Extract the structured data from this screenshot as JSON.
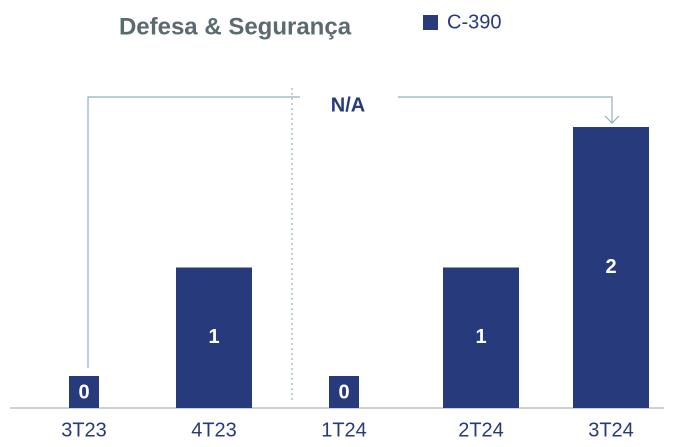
{
  "chart_data": {
    "type": "bar",
    "title": "Defesa & Segurança",
    "categories": [
      "3T23",
      "4T23",
      "1T24",
      "2T24",
      "3T24"
    ],
    "series": [
      {
        "name": "C-390",
        "color": "#263a7c",
        "values": [
          0,
          1,
          0,
          1,
          2
        ]
      }
    ],
    "ylim": [
      0,
      2
    ],
    "annotation": "N/A"
  }
}
